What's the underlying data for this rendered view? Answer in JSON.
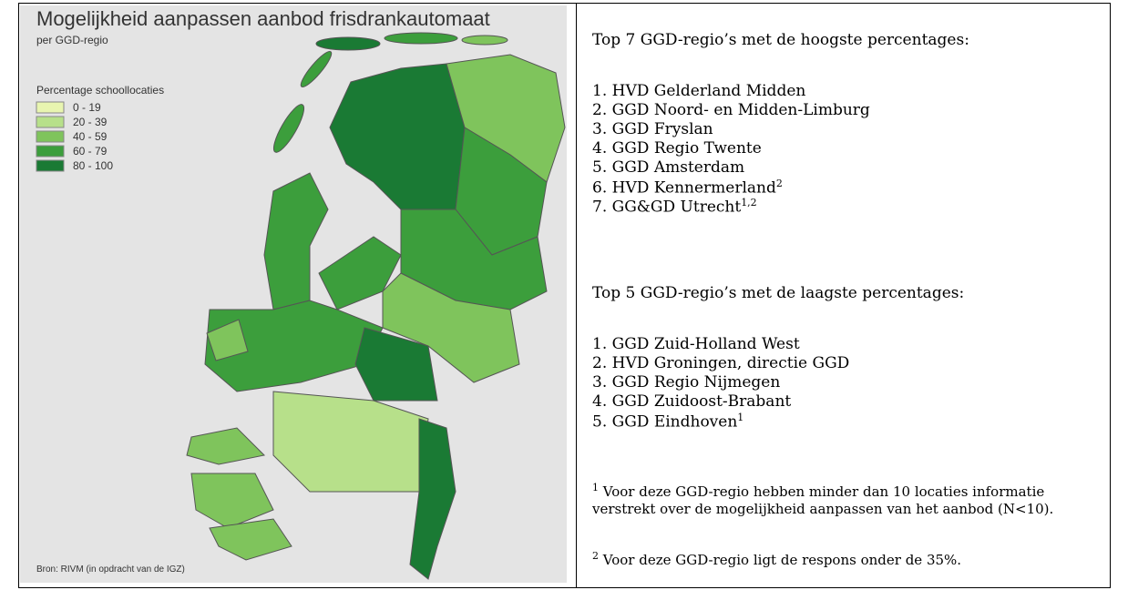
{
  "map": {
    "title": "Mogelijkheid aanpassen aanbod frisdrankautomaat",
    "subtitle": "per GGD-regio",
    "legend": {
      "title": "Percentage schoollocaties",
      "items": [
        {
          "label": "0 - 19",
          "color": "#e8f5b0"
        },
        {
          "label": "20 - 39",
          "color": "#b7e08a"
        },
        {
          "label": "40 - 59",
          "color": "#7fc45c"
        },
        {
          "label": "60 - 79",
          "color": "#3c9e3c"
        },
        {
          "label": "80 - 100",
          "color": "#1a7a34"
        }
      ]
    },
    "source": "Bron: RIVM (in opdracht van de IGZ)"
  },
  "text": {
    "heading_high": "Top 7 GGD-regio’s met de hoogste percentages:",
    "high": [
      {
        "text": "1. HVD Gelderland Midden"
      },
      {
        "text": "2. GGD Noord- en Midden-Limburg"
      },
      {
        "text": "3. GGD Fryslan"
      },
      {
        "text": "4. GGD Regio Twente"
      },
      {
        "text": "5. GGD Amsterdam"
      },
      {
        "text": "6. HVD Kennermerland",
        "sup": "2"
      },
      {
        "text": "7. GG&GD Utrecht",
        "sup": "1,2"
      }
    ],
    "heading_low": "Top 5 GGD-regio’s met de laagste percentages:",
    "low": [
      {
        "text": "1. GGD Zuid-Holland West"
      },
      {
        "text": "2. HVD Groningen, directie GGD"
      },
      {
        "text": "3. GGD Regio Nijmegen"
      },
      {
        "text": "4. GGD Zuidoost-Brabant"
      },
      {
        "text": "5. GGD Eindhoven",
        "sup": "1"
      }
    ],
    "footnotes": [
      {
        "mark": "1",
        "text": "Voor deze GGD-regio hebben minder dan 10 locaties informatie verstrekt over  de mogelijkheid aanpassen van het aanbod (N<10)."
      },
      {
        "mark": "2",
        "text": "Voor deze GGD-regio ligt de respons onder de 35%."
      }
    ]
  }
}
